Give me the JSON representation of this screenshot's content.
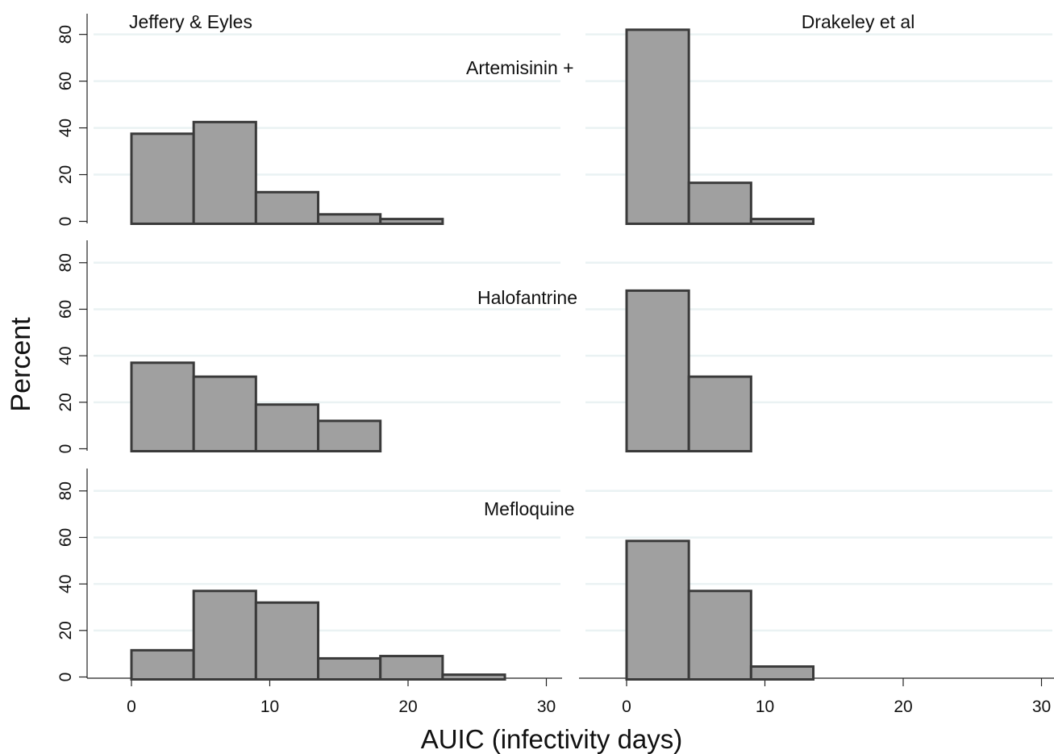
{
  "chart_data": {
    "type": "bar",
    "ylabel": "Percent",
    "xlabel": "AUIC (infectivity days)",
    "x_ticks": [
      0,
      10,
      20,
      30
    ],
    "y_ticks": [
      0,
      20,
      40,
      60,
      80
    ],
    "xlim": [
      -3.7,
      31
    ],
    "ylim": [
      0,
      88
    ],
    "bin_width": 4.5,
    "column_titles": [
      "Jeffery & Eyles",
      "Drakeley et al"
    ],
    "bar_fill": "#a0a0a0",
    "bar_stroke": "#3a3a3a",
    "grid_color": "#eaf2f3",
    "grid": true,
    "panels": [
      {
        "row_label": "Artemisinin +",
        "column": 0,
        "bin_starts": [
          0,
          4.5,
          9,
          13.5,
          18
        ],
        "values": [
          37.5,
          42.5,
          12.5,
          3,
          1
        ]
      },
      {
        "column": 1,
        "bin_starts": [
          0,
          4.5,
          9
        ],
        "values": [
          82,
          16.5,
          1
        ]
      },
      {
        "row_label": "Halofantrine",
        "column": 0,
        "bin_starts": [
          0,
          4.5,
          9,
          13.5
        ],
        "values": [
          37,
          31,
          19,
          12
        ]
      },
      {
        "column": 1,
        "bin_starts": [
          0,
          4.5
        ],
        "values": [
          68,
          31
        ]
      },
      {
        "row_label": "Mefloquine",
        "column": 0,
        "bin_starts": [
          0,
          4.5,
          9,
          13.5,
          18,
          22.5
        ],
        "values": [
          11.5,
          37,
          32,
          8,
          9,
          1
        ]
      },
      {
        "column": 1,
        "bin_starts": [
          0,
          4.5,
          9
        ],
        "values": [
          58.5,
          37,
          4.5
        ]
      }
    ]
  }
}
